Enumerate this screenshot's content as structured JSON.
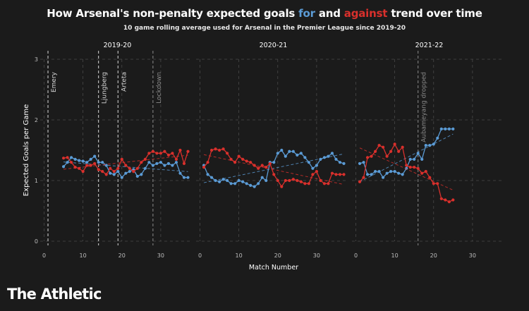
{
  "title": {
    "part1": "How Arsenal's non-penalty expected goals ",
    "for_word": "for",
    "part2": " and ",
    "against_word": "against",
    "part3": " trend over time"
  },
  "subtitle": "10 game rolling average used for Arsenal in the Premier League since 2019-20",
  "brand": "The Athletic",
  "colors": {
    "background": "#1b1b1b",
    "for": "#5b9bd5",
    "against": "#d9302c",
    "grid": "#4a4a4a",
    "text": "#ffffff"
  },
  "chart_data": {
    "type": "line",
    "xlabel": "Match Number",
    "ylabel": "Expected Goals per Game",
    "ylim": [
      0,
      3
    ],
    "yticks": [
      0,
      1,
      2,
      3
    ],
    "xticks": [
      0,
      10,
      20,
      30
    ],
    "grid": true,
    "panels": [
      {
        "season": "2019-20",
        "xlim": [
          -1,
          38
        ],
        "events": [
          {
            "x": 1,
            "label": "Emery",
            "style": "solid"
          },
          {
            "x": 14,
            "label": "Ljungberg",
            "style": "solid"
          },
          {
            "x": 19,
            "label": "Arteta",
            "style": "solid"
          },
          {
            "x": 28,
            "label": "Lockdown",
            "style": "muted"
          }
        ],
        "series": [
          {
            "key": "for",
            "x": [
              5,
              6,
              7,
              8,
              9,
              10,
              11,
              12,
              13,
              14,
              15,
              16,
              17,
              18,
              19,
              20,
              21,
              22,
              23,
              24,
              25,
              26,
              27,
              28,
              29,
              30,
              31,
              32,
              33,
              34,
              35,
              36,
              37
            ],
            "y": [
              1.23,
              1.3,
              1.38,
              1.35,
              1.33,
              1.32,
              1.3,
              1.35,
              1.4,
              1.3,
              1.3,
              1.25,
              1.12,
              1.1,
              1.15,
              1.05,
              1.12,
              1.15,
              1.18,
              1.07,
              1.1,
              1.2,
              1.3,
              1.25,
              1.28,
              1.3,
              1.25,
              1.28,
              1.25,
              1.3,
              1.12,
              1.05,
              1.05
            ]
          },
          {
            "key": "against",
            "x": [
              5,
              6,
              7,
              8,
              9,
              10,
              11,
              12,
              13,
              14,
              15,
              16,
              17,
              18,
              19,
              20,
              21,
              22,
              23,
              24,
              25,
              26,
              27,
              28,
              29,
              30,
              31,
              32,
              33,
              34,
              35,
              36,
              37
            ],
            "y": [
              1.37,
              1.38,
              1.3,
              1.22,
              1.2,
              1.15,
              1.25,
              1.25,
              1.28,
              1.18,
              1.15,
              1.1,
              1.2,
              1.15,
              1.2,
              1.35,
              1.25,
              1.2,
              1.15,
              1.2,
              1.3,
              1.35,
              1.45,
              1.48,
              1.45,
              1.45,
              1.48,
              1.42,
              1.45,
              1.35,
              1.5,
              1.28,
              1.48
            ]
          }
        ]
      },
      {
        "season": "2020-21",
        "xlim": [
          -1,
          38
        ],
        "events": [],
        "series": [
          {
            "key": "for",
            "x": [
              1,
              2,
              3,
              4,
              5,
              6,
              7,
              8,
              9,
              10,
              11,
              12,
              13,
              14,
              15,
              16,
              17,
              18,
              19,
              20,
              21,
              22,
              23,
              24,
              25,
              26,
              27,
              28,
              29,
              30,
              31,
              32,
              33,
              34,
              35,
              36,
              37
            ],
            "y": [
              1.25,
              1.1,
              1.05,
              1.0,
              0.98,
              1.02,
              1.0,
              0.95,
              0.95,
              1.0,
              0.98,
              0.95,
              0.92,
              0.9,
              0.95,
              1.05,
              1.0,
              1.3,
              1.3,
              1.45,
              1.5,
              1.4,
              1.48,
              1.48,
              1.42,
              1.45,
              1.38,
              1.3,
              1.2,
              1.25,
              1.35,
              1.38,
              1.4,
              1.45,
              1.35,
              1.3,
              1.28
            ]
          },
          {
            "key": "against",
            "x": [
              1,
              2,
              3,
              4,
              5,
              6,
              7,
              8,
              9,
              10,
              11,
              12,
              13,
              14,
              15,
              16,
              17,
              18,
              19,
              20,
              21,
              22,
              23,
              24,
              25,
              26,
              27,
              28,
              29,
              30,
              31,
              32,
              33,
              34,
              35,
              36,
              37
            ],
            "y": [
              1.22,
              1.3,
              1.5,
              1.52,
              1.5,
              1.52,
              1.45,
              1.35,
              1.3,
              1.4,
              1.35,
              1.32,
              1.3,
              1.25,
              1.2,
              1.25,
              1.22,
              1.28,
              1.1,
              1.0,
              0.9,
              1.0,
              1.0,
              1.02,
              1.0,
              0.98,
              0.95,
              0.95,
              1.1,
              1.15,
              1.0,
              0.95,
              0.95,
              1.12,
              1.1,
              1.1,
              1.1
            ]
          }
        ]
      },
      {
        "season": "2021-22",
        "xlim": [
          -1,
          38
        ],
        "events": [
          {
            "x": 16,
            "label": "Aubameyang dropped",
            "style": "muted"
          }
        ],
        "series": [
          {
            "key": "for",
            "x": [
              1,
              2,
              3,
              4,
              5,
              6,
              7,
              8,
              9,
              10,
              11,
              12,
              13,
              14,
              15,
              16,
              17,
              18,
              19,
              20,
              21,
              22,
              23,
              24,
              25
            ],
            "y": [
              1.28,
              1.3,
              1.1,
              1.1,
              1.15,
              1.15,
              1.05,
              1.12,
              1.15,
              1.15,
              1.12,
              1.1,
              1.2,
              1.35,
              1.35,
              1.45,
              1.35,
              1.58,
              1.58,
              1.6,
              1.7,
              1.85,
              1.85,
              1.85,
              1.85
            ]
          },
          {
            "key": "against",
            "x": [
              1,
              2,
              3,
              4,
              5,
              6,
              7,
              8,
              9,
              10,
              11,
              12,
              13,
              14,
              15,
              16,
              17,
              18,
              19,
              20,
              21,
              22,
              23,
              24,
              25
            ],
            "y": [
              0.98,
              1.05,
              1.38,
              1.4,
              1.48,
              1.58,
              1.55,
              1.4,
              1.48,
              1.6,
              1.48,
              1.55,
              1.25,
              1.22,
              1.22,
              1.2,
              1.12,
              1.15,
              1.05,
              0.95,
              0.95,
              0.7,
              0.68,
              0.65,
              0.68
            ]
          }
        ]
      }
    ]
  }
}
